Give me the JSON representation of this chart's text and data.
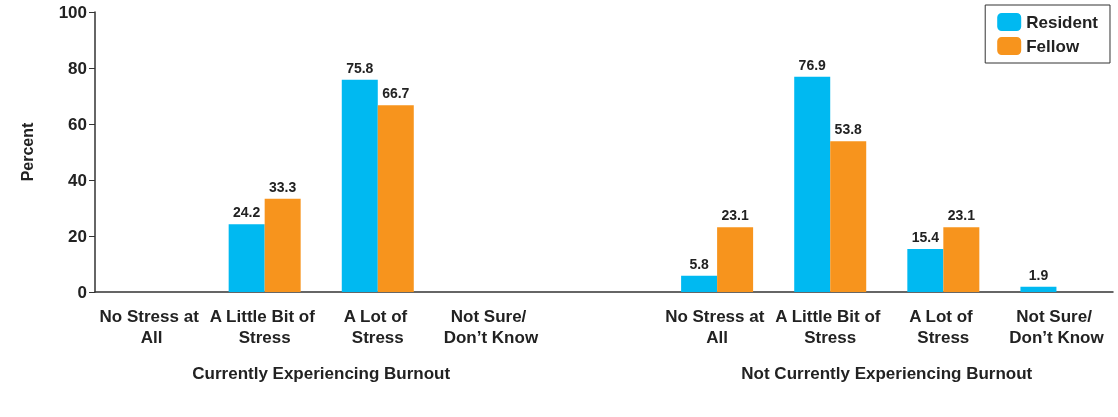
{
  "chart_data": {
    "type": "bar",
    "ylabel": "Percent",
    "categories": [
      "No Stress at All",
      "A Little Bit of Stress",
      "A Lot of Stress",
      "Not Sure/ Don’t Know",
      null,
      "No Stress at All",
      "A Little Bit of Stress",
      "A Lot of Stress",
      "Not Sure/ Don’t Know"
    ],
    "series": [
      {
        "name": "Resident",
        "color": "#00b9f1",
        "values": [
          null,
          24.2,
          75.8,
          null,
          null,
          5.8,
          76.9,
          15.4,
          1.9
        ]
      },
      {
        "name": "Fellow",
        "color": "#f7941d",
        "values": [
          null,
          33.3,
          66.7,
          null,
          null,
          23.1,
          53.8,
          23.1,
          null
        ]
      }
    ],
    "ylim": [
      0,
      100
    ],
    "yticks": [
      0,
      20,
      40,
      60,
      80,
      100
    ],
    "grid": false,
    "legend": "top right",
    "data_labels": true,
    "annotations": [
      "Currently Experiencing Burnout",
      "Not Currently Experiencing Burnout"
    ]
  }
}
